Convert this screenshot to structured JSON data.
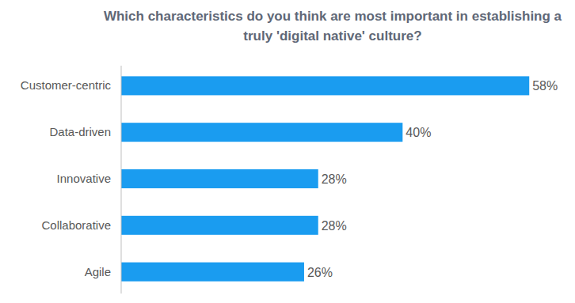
{
  "chart_data": {
    "type": "bar",
    "orientation": "horizontal",
    "title": "Which characteristics do you think are most important in establishing a truly 'digital native' culture?",
    "categories": [
      "Customer-centric",
      "Data-driven",
      "Innovative",
      "Collaborative",
      "Agile"
    ],
    "values": [
      58,
      40,
      28,
      28,
      26
    ],
    "value_labels": [
      "58%",
      "40%",
      "28%",
      "28%",
      "26%"
    ],
    "color": "#1a9cf0",
    "xlim": [
      0,
      60
    ],
    "data_labels": true,
    "tick_labels": "y"
  }
}
